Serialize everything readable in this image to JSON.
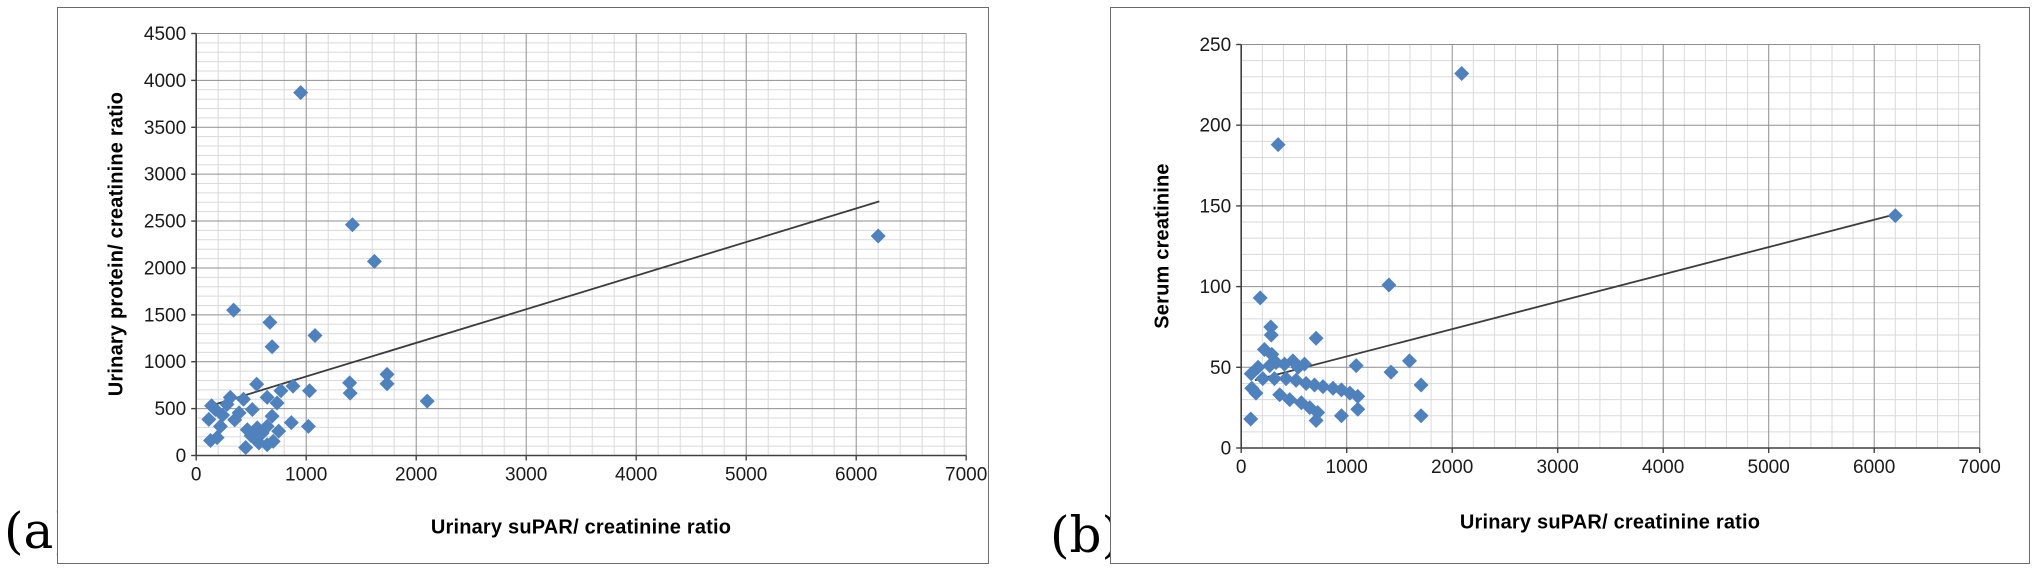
{
  "panels": {
    "a": {
      "corner_label": "(a)"
    },
    "b": {
      "corner_label": "(b)"
    }
  },
  "chart_data": [
    {
      "id": "a",
      "type": "scatter",
      "title": "",
      "xlabel": "Urinary suPAR/ creatinine ratio",
      "ylabel": "Urinary protein/ creatinine ratio",
      "xlim": [
        0,
        7000
      ],
      "ylim": [
        0,
        4500
      ],
      "x_ticks": [
        0,
        1000,
        2000,
        3000,
        4000,
        5000,
        6000,
        7000
      ],
      "y_ticks": [
        0,
        500,
        1000,
        1500,
        2000,
        2500,
        3000,
        3500,
        4000,
        4500
      ],
      "x_minor_step": 200,
      "y_minor_step": 100,
      "grid": "major+minor",
      "legend": "none",
      "marker": {
        "shape": "diamond",
        "color": "#4f81bd",
        "size": 15
      },
      "trendline": {
        "x": [
          100,
          6210
        ],
        "y": [
          520,
          2710
        ],
        "color": "#3d3d3d"
      },
      "style": {
        "grid_minor": "#dadada",
        "grid_major": "#8f8f8f",
        "axis": "#404040",
        "tick_label_color": "#1a1a1a"
      },
      "points": [
        [
          950,
          3870
        ],
        [
          1420,
          2460
        ],
        [
          1620,
          2070
        ],
        [
          6200,
          2340
        ],
        [
          340,
          1550
        ],
        [
          670,
          1420
        ],
        [
          1080,
          1280
        ],
        [
          690,
          1160
        ],
        [
          1735,
          865
        ],
        [
          1735,
          765
        ],
        [
          1395,
          775
        ],
        [
          1400,
          665
        ],
        [
          2100,
          580
        ],
        [
          550,
          760
        ],
        [
          880,
          740
        ],
        [
          770,
          690
        ],
        [
          1030,
          690
        ],
        [
          735,
          560
        ],
        [
          645,
          620
        ],
        [
          430,
          600
        ],
        [
          310,
          620
        ],
        [
          280,
          545
        ],
        [
          140,
          530
        ],
        [
          175,
          490
        ],
        [
          510,
          490
        ],
        [
          390,
          455
        ],
        [
          240,
          430
        ],
        [
          690,
          420
        ],
        [
          115,
          385
        ],
        [
          350,
          380
        ],
        [
          865,
          350
        ],
        [
          645,
          310
        ],
        [
          220,
          310
        ],
        [
          1020,
          310
        ],
        [
          555,
          295
        ],
        [
          465,
          275
        ],
        [
          750,
          260
        ],
        [
          600,
          240
        ],
        [
          500,
          210
        ],
        [
          190,
          190
        ],
        [
          130,
          160
        ],
        [
          700,
          150
        ],
        [
          570,
          135
        ],
        [
          645,
          115
        ],
        [
          450,
          85
        ]
      ]
    },
    {
      "id": "b",
      "type": "scatter",
      "title": "",
      "xlabel": "Urinary suPAR/ creatinine ratio",
      "ylabel": "Serum creatinine",
      "xlim": [
        0,
        7000
      ],
      "ylim": [
        0,
        250
      ],
      "x_ticks": [
        0,
        1000,
        2000,
        3000,
        4000,
        5000,
        6000,
        7000
      ],
      "y_ticks": [
        0,
        50,
        100,
        150,
        200,
        250
      ],
      "x_minor_step": 200,
      "y_minor_step": 10,
      "grid": "major+minor",
      "legend": "none",
      "marker": {
        "shape": "diamond",
        "color": "#4f81bd",
        "size": 15
      },
      "trendline": {
        "x": [
          130,
          6210
        ],
        "y": [
          42,
          145
        ],
        "color": "#3d3d3d"
      },
      "style": {
        "grid_minor": "#dadada",
        "grid_major": "#8f8f8f",
        "axis": "#404040",
        "tick_label_color": "#1a1a1a"
      },
      "points": [
        [
          2090,
          232
        ],
        [
          350,
          188
        ],
        [
          6200,
          144
        ],
        [
          1400,
          101
        ],
        [
          180,
          93
        ],
        [
          280,
          75
        ],
        [
          285,
          70
        ],
        [
          710,
          68
        ],
        [
          220,
          61
        ],
        [
          290,
          58
        ],
        [
          1595,
          54
        ],
        [
          490,
          54
        ],
        [
          330,
          53
        ],
        [
          600,
          52
        ],
        [
          410,
          52
        ],
        [
          1090,
          51
        ],
        [
          270,
          51
        ],
        [
          160,
          50
        ],
        [
          540,
          50
        ],
        [
          1420,
          47
        ],
        [
          95,
          46
        ],
        [
          205,
          43
        ],
        [
          315,
          43
        ],
        [
          425,
          43
        ],
        [
          520,
          42
        ],
        [
          615,
          40
        ],
        [
          695,
          39
        ],
        [
          1705,
          39
        ],
        [
          775,
          38
        ],
        [
          870,
          37
        ],
        [
          100,
          37
        ],
        [
          950,
          36
        ],
        [
          140,
          34
        ],
        [
          1030,
          34
        ],
        [
          365,
          33
        ],
        [
          1105,
          32
        ],
        [
          460,
          30
        ],
        [
          570,
          28
        ],
        [
          650,
          25
        ],
        [
          1105,
          24
        ],
        [
          725,
          22
        ],
        [
          950,
          20
        ],
        [
          1705,
          20
        ],
        [
          90,
          18
        ],
        [
          710,
          17
        ]
      ]
    }
  ]
}
